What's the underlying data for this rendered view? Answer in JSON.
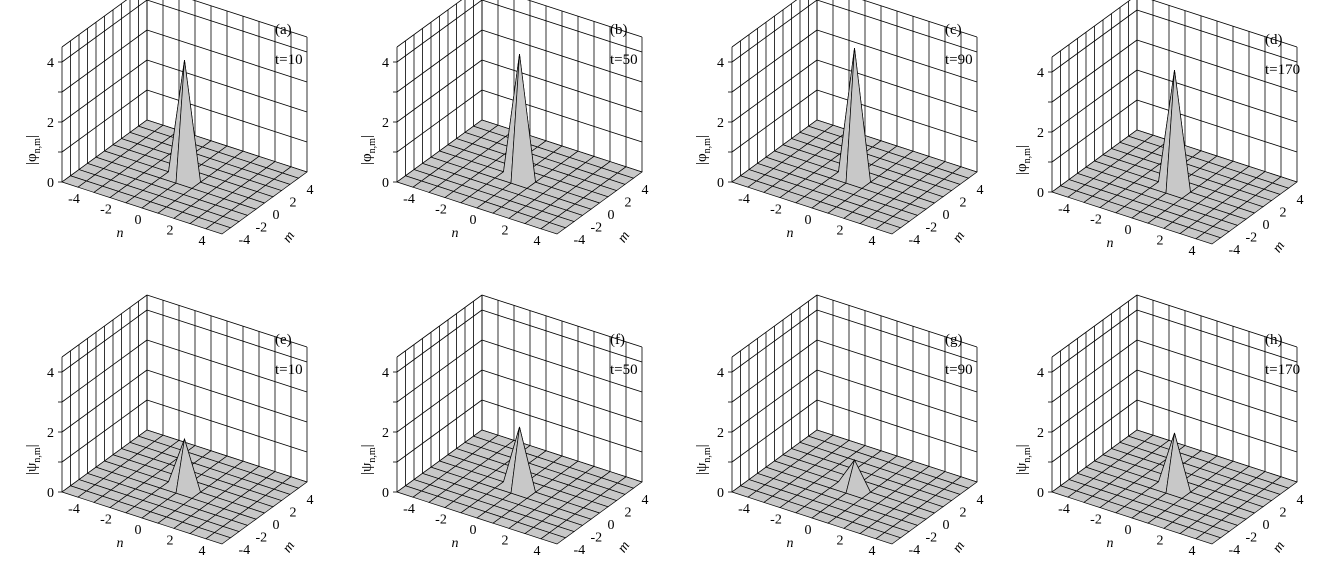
{
  "chart_data": [
    {
      "type": "surface3d",
      "panel": "(a)",
      "time": "t=10",
      "zlabel_symbol": "φ",
      "zlabel_sub": "n,m",
      "xlabel": "n",
      "ylabel": "m",
      "xticks": [
        "-4",
        "-2",
        "0",
        "2",
        "4"
      ],
      "yticks": [
        "-4",
        "-2",
        "0",
        "2",
        "4"
      ],
      "zticks": [
        "0",
        "2",
        "4"
      ],
      "zlim": [
        0,
        4.5
      ],
      "peak": 3.9,
      "grid": true
    },
    {
      "type": "surface3d",
      "panel": "(b)",
      "time": "t=50",
      "zlabel_symbol": "φ",
      "zlabel_sub": "n,m",
      "xlabel": "n",
      "ylabel": "m",
      "xticks": [
        "-4",
        "-2",
        "0",
        "2",
        "4"
      ],
      "yticks": [
        "-4",
        "-2",
        "0",
        "2",
        "4"
      ],
      "zticks": [
        "0",
        "2",
        "4"
      ],
      "zlim": [
        0,
        4.5
      ],
      "peak": 4.1,
      "grid": true
    },
    {
      "type": "surface3d",
      "panel": "(c)",
      "time": "t=90",
      "zlabel_symbol": "φ",
      "zlabel_sub": "n,m",
      "xlabel": "n",
      "ylabel": "m",
      "xticks": [
        "-4",
        "-2",
        "0",
        "2",
        "4"
      ],
      "yticks": [
        "-4",
        "-2",
        "0",
        "2",
        "4"
      ],
      "zticks": [
        "0",
        "2",
        "4"
      ],
      "zlim": [
        0,
        4.5
      ],
      "peak": 4.3,
      "grid": true
    },
    {
      "type": "surface3d",
      "panel": "(d)",
      "time": "t=170",
      "zlabel_symbol": "φ",
      "zlabel_sub": "n,m",
      "xlabel": "n",
      "ylabel": "m",
      "xticks": [
        "-4",
        "-2",
        "0",
        "2",
        "4"
      ],
      "yticks": [
        "-4",
        "-2",
        "0",
        "2",
        "4"
      ],
      "zticks": [
        "0",
        "2",
        "4"
      ],
      "zlim": [
        0,
        4.5
      ],
      "peak": 3.9,
      "grid": true
    },
    {
      "type": "surface3d",
      "panel": "(e)",
      "time": "t=10",
      "zlabel_symbol": "ψ",
      "zlabel_sub": "n,m",
      "xlabel": "n",
      "ylabel": "m",
      "xticks": [
        "-4",
        "-2",
        "0",
        "2",
        "4"
      ],
      "yticks": [
        "-4",
        "-2",
        "0",
        "2",
        "4"
      ],
      "zticks": [
        "0",
        "2",
        "4"
      ],
      "zlim": [
        0,
        4.5
      ],
      "peak": 1.6,
      "grid": true
    },
    {
      "type": "surface3d",
      "panel": "(f)",
      "time": "t=50",
      "zlabel_symbol": "ψ",
      "zlabel_sub": "n,m",
      "xlabel": "n",
      "ylabel": "m",
      "xticks": [
        "-4",
        "-2",
        "0",
        "2",
        "4"
      ],
      "yticks": [
        "-4",
        "-2",
        "0",
        "2",
        "4"
      ],
      "zticks": [
        "0",
        "2",
        "4"
      ],
      "zlim": [
        0,
        4.5
      ],
      "peak": 2.0,
      "grid": true
    },
    {
      "type": "surface3d",
      "panel": "(g)",
      "time": "t=90",
      "zlabel_symbol": "ψ",
      "zlabel_sub": "n,m",
      "xlabel": "n",
      "ylabel": "m",
      "xticks": [
        "-4",
        "-2",
        "0",
        "2",
        "4"
      ],
      "yticks": [
        "-4",
        "-2",
        "0",
        "2",
        "4"
      ],
      "zticks": [
        "0",
        "2",
        "4"
      ],
      "zlim": [
        0,
        4.5
      ],
      "peak": 0.9,
      "grid": true
    },
    {
      "type": "surface3d",
      "panel": "(h)",
      "time": "t=170",
      "zlabel_symbol": "ψ",
      "zlabel_sub": "n,m",
      "xlabel": "n",
      "ylabel": "m",
      "xticks": [
        "-4",
        "-2",
        "0",
        "2",
        "4"
      ],
      "yticks": [
        "-4",
        "-2",
        "0",
        "2",
        "4"
      ],
      "zticks": [
        "0",
        "2",
        "4"
      ],
      "zlim": [
        0,
        4.5
      ],
      "peak": 1.8,
      "grid": true
    }
  ],
  "colors": {
    "surface": "#c8c8c8",
    "line": "#000000",
    "background": "#ffffff"
  }
}
